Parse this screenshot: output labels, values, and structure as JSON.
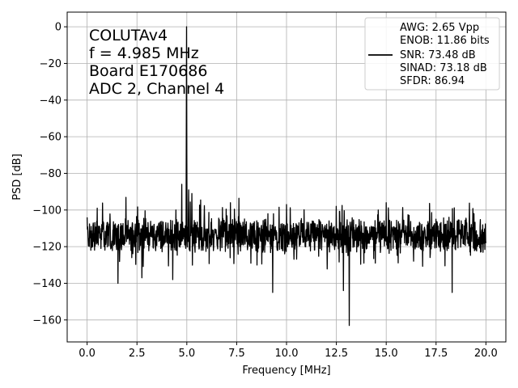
{
  "chart_data": {
    "type": "line",
    "title": "",
    "xlabel": "Frequency [MHz]",
    "ylabel": "PSD [dB]",
    "xlim": [
      -1.0,
      21.0
    ],
    "ylim": [
      -172,
      8
    ],
    "xticks": [
      0.0,
      2.5,
      5.0,
      7.5,
      10.0,
      12.5,
      15.0,
      17.5,
      20.0
    ],
    "xtick_labels": [
      "0.0",
      "2.5",
      "5.0",
      "7.5",
      "10.0",
      "12.5",
      "15.0",
      "17.5",
      "20.0"
    ],
    "yticks": [
      0,
      -20,
      -40,
      -60,
      -80,
      -100,
      -120,
      -140,
      -160
    ],
    "ytick_labels": [
      "0",
      "−20",
      "−40",
      "−60",
      "−80",
      "−100",
      "−120",
      "−140",
      "−160"
    ],
    "grid": true,
    "legend_position": "top-right",
    "annotation_lines": [
      "COLUTAv4",
      "f = 4.985 MHz",
      "Board E170686",
      "ADC 2, Channel 4"
    ],
    "legend_lines": [
      "AWG: 2.65 Vpp",
      "ENOB: 11.86 bits",
      "SNR: 73.48 dB",
      "SINAD: 73.18 dB",
      "SFDR: 86.94"
    ],
    "series_color": "#000000",
    "series": [
      {
        "noise_floor_db": -114,
        "fundamental": {
          "x": 4.985,
          "y": 0
        },
        "spurs": [
          {
            "x": 0.5,
            "y": -99
          },
          {
            "x": 1.0,
            "y": -107
          },
          {
            "x": 1.55,
            "y": -140
          },
          {
            "x": 2.75,
            "y": -137
          },
          {
            "x": 4.45,
            "y": -100
          },
          {
            "x": 4.75,
            "y": -86
          },
          {
            "x": 5.1,
            "y": -89
          },
          {
            "x": 5.25,
            "y": -91
          },
          {
            "x": 4.3,
            "y": -138
          },
          {
            "x": 9.3,
            "y": -145
          },
          {
            "x": 10.0,
            "y": -97
          },
          {
            "x": 12.5,
            "y": -98
          },
          {
            "x": 12.85,
            "y": -144
          },
          {
            "x": 13.15,
            "y": -163
          },
          {
            "x": 15.0,
            "y": -96
          },
          {
            "x": 14.6,
            "y": -100
          },
          {
            "x": 18.3,
            "y": -145
          },
          {
            "x": 17.5,
            "y": -105
          },
          {
            "x": 19.4,
            "y": -102
          },
          {
            "x": 0.0,
            "y": -104
          }
        ]
      }
    ]
  }
}
